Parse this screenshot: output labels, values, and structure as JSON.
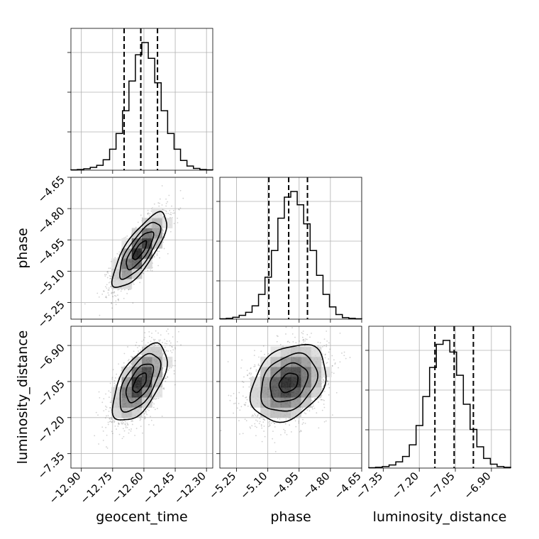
{
  "chart_data": {
    "type": "corner",
    "parameters": [
      "geocent_time",
      "phase",
      "luminosity_distance"
    ],
    "axis_labels": [
      "geocent_time",
      "phase",
      "luminosity_distance"
    ],
    "ranges": [
      [
        -12.95,
        -12.27
      ],
      [
        -5.33,
        -4.65
      ],
      [
        -7.41,
        -6.82
      ]
    ],
    "ticks": [
      [
        "−12.90",
        "−12.75",
        "−12.60",
        "−12.45",
        "−12.30"
      ],
      [
        "−5.25",
        "−5.10",
        "−4.95",
        "−4.80",
        "−4.65"
      ],
      [
        "−7.35",
        "−7.20",
        "−7.05",
        "−6.90"
      ]
    ],
    "tick_values": [
      [
        -12.9,
        -12.75,
        -12.6,
        -12.45,
        -12.3
      ],
      [
        -5.25,
        -5.1,
        -4.95,
        -4.8,
        -4.65
      ],
      [
        -7.35,
        -7.2,
        -7.05,
        -6.9
      ]
    ],
    "grid": true,
    "quantiles": [
      [
        -12.695,
        -12.615,
        -12.535
      ],
      [
        -5.095,
        -5.0,
        -4.91
      ],
      [
        -7.135,
        -7.055,
        -6.975
      ]
    ],
    "marginals": [
      {
        "parameter": "geocent_time",
        "bins_edges": [
          -12.95,
          -12.27
        ],
        "counts": [
          1,
          2,
          4,
          8,
          14,
          30,
          60,
          105,
          170,
          255,
          330,
          365,
          320,
          250,
          170,
          105,
          60,
          28,
          12,
          5,
          2,
          1
        ]
      },
      {
        "parameter": "phase",
        "bins_edges": [
          -5.33,
          -4.65
        ],
        "counts": [
          1,
          2,
          5,
          10,
          18,
          35,
          65,
          110,
          180,
          265,
          320,
          335,
          300,
          250,
          180,
          115,
          65,
          32,
          12,
          4,
          2,
          1
        ]
      },
      {
        "parameter": "luminosity_distance",
        "bins_edges": [
          -7.41,
          -6.82
        ],
        "counts": [
          1,
          2,
          4,
          8,
          16,
          30,
          60,
          110,
          185,
          260,
          320,
          330,
          300,
          240,
          165,
          100,
          55,
          25,
          10,
          4,
          2
        ]
      }
    ],
    "correlations": [
      {
        "x": "geocent_time",
        "y": "phase",
        "center": [
          -12.62,
          -5.0
        ],
        "sd": [
          0.065,
          0.09
        ],
        "rho": 0.78
      },
      {
        "x": "geocent_time",
        "y": "luminosity_distance",
        "center": [
          -12.62,
          -7.055
        ],
        "sd": [
          0.065,
          0.08
        ],
        "rho": 0.6
      },
      {
        "x": "phase",
        "y": "luminosity_distance",
        "center": [
          -5.0,
          -7.055
        ],
        "sd": [
          0.09,
          0.08
        ],
        "rho": 0.3
      }
    ],
    "contour_levels_sigma": [
      0.5,
      1.0,
      1.5,
      2.0
    ]
  }
}
